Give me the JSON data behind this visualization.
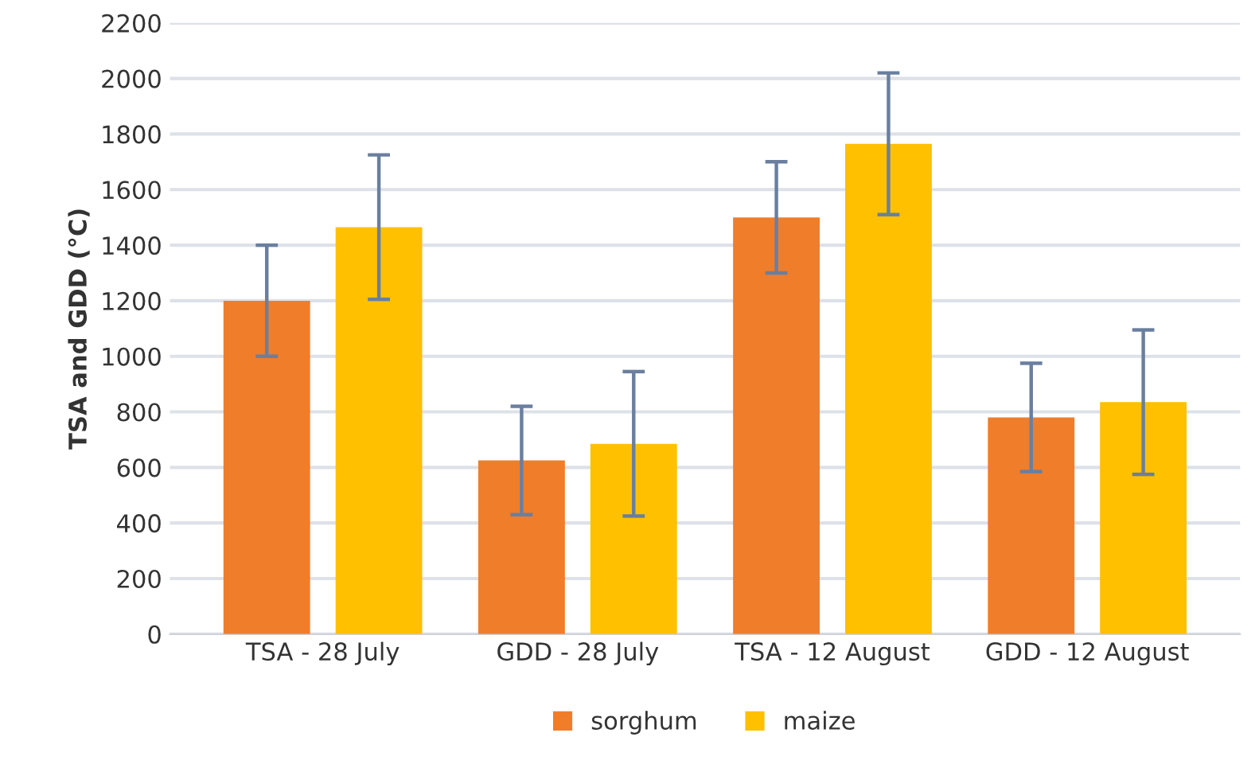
{
  "chart_data": {
    "type": "bar",
    "ylabel": "TSA and GDD (°C)",
    "categories": [
      "TSA - 28 July",
      "GDD - 28 July",
      "TSA - 12 August",
      "GDD - 12 August"
    ],
    "series": [
      {
        "name": "sorghum",
        "color": "#f07d2a",
        "values": [
          1200,
          625,
          1500,
          780
        ],
        "errors": [
          200,
          195,
          200,
          195
        ]
      },
      {
        "name": "maize",
        "color": "#ffc000",
        "values": [
          1465,
          685,
          1765,
          835
        ],
        "errors": [
          260,
          260,
          255,
          260
        ]
      }
    ],
    "ylim": [
      0,
      2200
    ],
    "yticks": [
      0,
      200,
      400,
      600,
      800,
      1000,
      1200,
      1400,
      1600,
      1800,
      2000,
      2200
    ],
    "grid": "y",
    "legend": "bottom"
  }
}
